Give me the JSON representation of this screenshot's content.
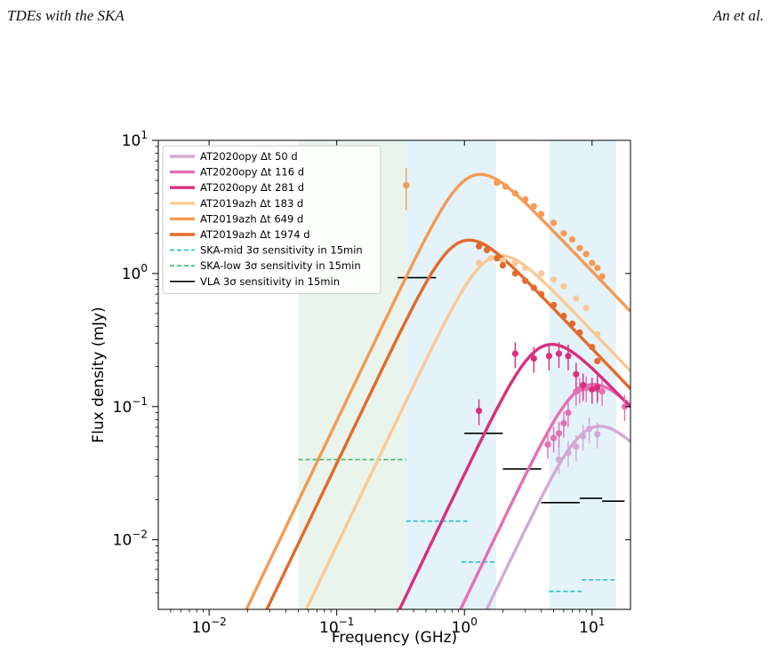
{
  "header": {
    "left": "TDEs with the SKA",
    "right": "An et al."
  },
  "chart_data": {
    "type": "line",
    "title": "",
    "xlabel": "Frequency (GHz)",
    "ylabel": "Flux density (mJy)",
    "xscale": "log",
    "yscale": "log",
    "xlim": [
      0.004,
      20
    ],
    "ylim": [
      0.003,
      10
    ],
    "x_ticks": [
      {
        "v": 0.01,
        "base": "10",
        "exp": "−2"
      },
      {
        "v": 0.1,
        "base": "10",
        "exp": "−1"
      },
      {
        "v": 1,
        "base": "10",
        "exp": "0"
      },
      {
        "v": 10,
        "base": "10",
        "exp": "1"
      }
    ],
    "y_ticks": [
      {
        "v": 0.01,
        "base": "10",
        "exp": "−2"
      },
      {
        "v": 0.1,
        "base": "10",
        "exp": "−1"
      },
      {
        "v": 1,
        "base": "10",
        "exp": "0"
      },
      {
        "v": 10,
        "base": "10",
        "exp": "1"
      }
    ],
    "shaded_bands": [
      {
        "x0": 0.05,
        "x1": 0.35,
        "color": "#e9f5ec"
      },
      {
        "x0": 0.35,
        "x1": 1.77,
        "color": "#e4f3f9"
      },
      {
        "x0": 4.6,
        "x1": 15.4,
        "color": "#e4f3f9"
      }
    ],
    "legend": {
      "position": "top-left"
    },
    "series": [
      {
        "name": "AT2020opy Δt 50 d",
        "color": "#d3a8d6",
        "peak_nu": 9.5,
        "peak_flux": 0.068,
        "x": [
          5.5,
          6.5,
          7.5,
          8.5,
          9.5,
          11
        ],
        "y": [
          0.04,
          0.045,
          0.05,
          0.06,
          0.068,
          0.062
        ]
      },
      {
        "name": "AT2020opy Δt 116 d",
        "color": "#e46fb4",
        "peak_nu": 8.5,
        "peak_flux": 0.14,
        "x": [
          4.5,
          5.0,
          5.5,
          6.0,
          6.5,
          7.5,
          8.0,
          8.5,
          9.0,
          10,
          11,
          12,
          18
        ],
        "y": [
          0.052,
          0.058,
          0.063,
          0.075,
          0.09,
          0.13,
          0.135,
          0.14,
          0.138,
          0.135,
          0.135,
          0.13,
          0.1
        ]
      },
      {
        "name": "AT2020opy Δt 281 d",
        "color": "#d7307e",
        "peak_nu": 4.0,
        "peak_flux": 0.28,
        "x": [
          1.3,
          2.5,
          3.5,
          4.6,
          5.5,
          6.5,
          7.5,
          8.5,
          10,
          11
        ],
        "y": [
          0.093,
          0.25,
          0.23,
          0.24,
          0.25,
          0.24,
          0.175,
          0.145,
          0.135,
          0.14
        ]
      },
      {
        "name": "AT2019azh Δt 183 d",
        "color": "#fac995",
        "peak_nu": 1.6,
        "peak_flux": 1.3,
        "x": [
          1.3,
          1.6,
          2.0,
          2.5,
          3.0,
          4.0,
          5.0,
          6.0,
          7.5,
          9.0,
          11
        ],
        "y": [
          1.2,
          1.3,
          1.25,
          1.2,
          1.1,
          1.0,
          0.9,
          0.8,
          0.65,
          0.55,
          0.35
        ]
      },
      {
        "name": "AT2019azh Δt 649 d",
        "color": "#f49a54",
        "peak_nu": 1.1,
        "peak_flux": 5.3,
        "x": [
          0.35,
          1.8,
          2.1,
          2.5,
          3.0,
          3.5,
          4.0,
          5.0,
          6.0,
          7.0,
          8.0,
          9.0,
          10,
          11,
          12
        ],
        "y": [
          4.6,
          4.8,
          4.5,
          4.0,
          3.6,
          3.2,
          2.8,
          2.4,
          2.0,
          1.8,
          1.55,
          1.4,
          1.2,
          1.1,
          0.95
        ]
      },
      {
        "name": "AT2019azh Δt 1974 d",
        "color": "#e36a2c",
        "peak_nu": 0.9,
        "peak_flux": 1.7,
        "x": [
          1.3,
          1.5,
          1.8,
          2.0,
          2.5,
          3.0,
          3.5,
          4.0,
          5.0,
          6.0,
          7.0,
          8.0,
          10,
          11
        ],
        "y": [
          1.6,
          1.5,
          1.3,
          1.15,
          1.0,
          0.88,
          0.78,
          0.7,
          0.58,
          0.48,
          0.42,
          0.36,
          0.28,
          0.22
        ]
      }
    ],
    "sensitivity": [
      {
        "name": "SKA-mid 3σ sensitivity in 15min",
        "color": "#1fc1cb",
        "dash": true,
        "segments": [
          [
            0.35,
            1.05,
            0.0138
          ],
          [
            0.95,
            1.75,
            0.0068
          ],
          [
            4.6,
            8.3,
            0.0041
          ],
          [
            8.3,
            15.4,
            0.005
          ]
        ]
      },
      {
        "name": "SKA-low 3σ sensitivity in 15min",
        "color": "#3fba6a",
        "dash": true,
        "segments": [
          [
            0.05,
            0.35,
            0.04
          ]
        ]
      },
      {
        "name": "VLA 3σ sensitivity in 15min",
        "color": "#000000",
        "dash": false,
        "segments": [
          [
            0.3,
            0.6,
            0.93
          ],
          [
            1.0,
            2.0,
            0.063
          ],
          [
            2.0,
            4.0,
            0.034
          ],
          [
            4.0,
            8.0,
            0.019
          ],
          [
            8.0,
            12.0,
            0.0205
          ],
          [
            12.0,
            18.0,
            0.0195
          ]
        ]
      }
    ]
  }
}
